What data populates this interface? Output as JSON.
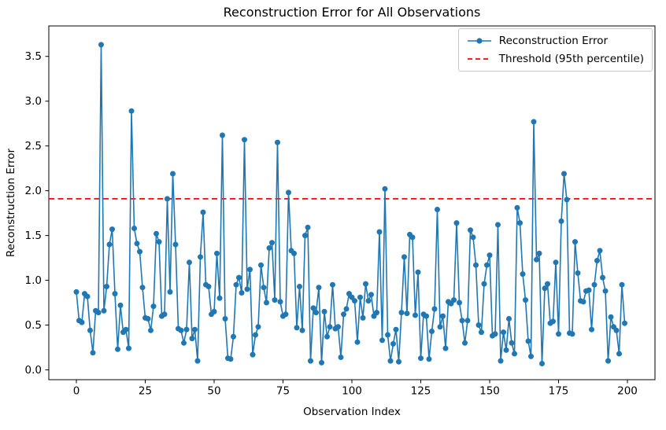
{
  "chart_data": {
    "type": "line",
    "title": "Reconstruction Error for All Observations",
    "xlabel": "Observation Index",
    "ylabel": "Reconstruction Error",
    "xlim": [
      -10,
      210
    ],
    "ylim": [
      -0.11,
      3.84
    ],
    "x_ticks": [
      0,
      25,
      50,
      75,
      100,
      125,
      150,
      175,
      200
    ],
    "y_ticks": [
      0.0,
      0.5,
      1.0,
      1.5,
      2.0,
      2.5,
      3.0,
      3.5
    ],
    "grid": false,
    "legend_position": "upper right",
    "series": [
      {
        "name": "Reconstruction Error",
        "type": "line",
        "marker": "circle",
        "color": "#1f77b4",
        "line_style": "solid",
        "x_start": 0,
        "x_step": 1,
        "values": [
          0.87,
          0.55,
          0.53,
          0.85,
          0.82,
          0.44,
          0.19,
          0.66,
          0.64,
          3.63,
          0.66,
          0.93,
          1.4,
          1.57,
          0.85,
          0.23,
          0.72,
          0.42,
          0.45,
          0.24,
          2.89,
          1.58,
          1.41,
          1.32,
          0.92,
          0.58,
          0.57,
          0.44,
          0.71,
          1.52,
          1.43,
          0.6,
          0.62,
          1.91,
          0.87,
          2.19,
          1.4,
          0.46,
          0.44,
          0.3,
          0.45,
          1.2,
          0.35,
          0.45,
          0.1,
          1.26,
          1.76,
          0.95,
          0.93,
          0.62,
          0.65,
          1.3,
          0.8,
          2.62,
          0.57,
          0.13,
          0.12,
          0.37,
          0.95,
          1.03,
          0.86,
          2.57,
          0.9,
          1.12,
          0.17,
          0.39,
          0.48,
          1.17,
          0.92,
          0.75,
          1.36,
          1.42,
          0.78,
          2.54,
          0.76,
          0.6,
          0.62,
          1.98,
          1.33,
          1.3,
          0.47,
          0.93,
          0.44,
          1.5,
          1.59,
          0.1,
          0.69,
          0.64,
          0.92,
          0.08,
          0.65,
          0.37,
          0.48,
          0.95,
          0.46,
          0.48,
          0.14,
          0.62,
          0.68,
          0.85,
          0.81,
          0.77,
          0.31,
          0.81,
          0.58,
          0.96,
          0.77,
          0.84,
          0.6,
          0.64,
          1.54,
          0.33,
          2.02,
          0.39,
          0.1,
          0.29,
          0.45,
          0.09,
          0.64,
          1.26,
          0.63,
          1.51,
          1.48,
          0.61,
          1.09,
          0.13,
          0.62,
          0.6,
          0.12,
          0.43,
          0.68,
          1.79,
          0.48,
          0.6,
          0.24,
          0.76,
          0.74,
          0.78,
          1.64,
          0.75,
          0.55,
          0.3,
          0.55,
          1.56,
          1.48,
          1.17,
          0.5,
          0.42,
          0.96,
          1.17,
          1.28,
          0.38,
          0.4,
          1.62,
          0.1,
          0.42,
          0.22,
          0.57,
          0.3,
          0.18,
          1.81,
          1.64,
          1.07,
          0.78,
          0.32,
          0.15,
          2.77,
          1.23,
          1.3,
          0.07,
          0.91,
          0.96,
          0.52,
          0.54,
          1.2,
          0.4,
          1.66,
          2.19,
          1.9,
          0.41,
          0.4,
          1.43,
          1.08,
          0.77,
          0.76,
          0.88,
          0.89,
          0.45,
          0.95,
          1.22,
          1.33,
          1.03,
          0.88,
          0.1,
          0.59,
          0.48,
          0.44,
          0.18,
          0.95,
          0.52
        ]
      },
      {
        "name": "Threshold (95th percentile)",
        "type": "hline",
        "color": "#ff0000",
        "line_style": "dashed",
        "value": 1.91
      }
    ]
  }
}
